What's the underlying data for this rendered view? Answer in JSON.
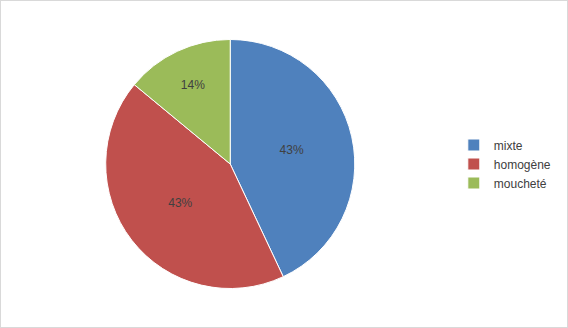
{
  "chart_data": {
    "type": "pie",
    "categories": [
      "mixte",
      "homogène",
      "moucheté"
    ],
    "values": [
      43,
      43,
      14
    ],
    "value_labels": [
      "43%",
      "43%",
      "14%"
    ],
    "colors": [
      "#4f81bd",
      "#c0504d",
      "#9bbb59"
    ],
    "data_labels": true,
    "legend": "right"
  }
}
